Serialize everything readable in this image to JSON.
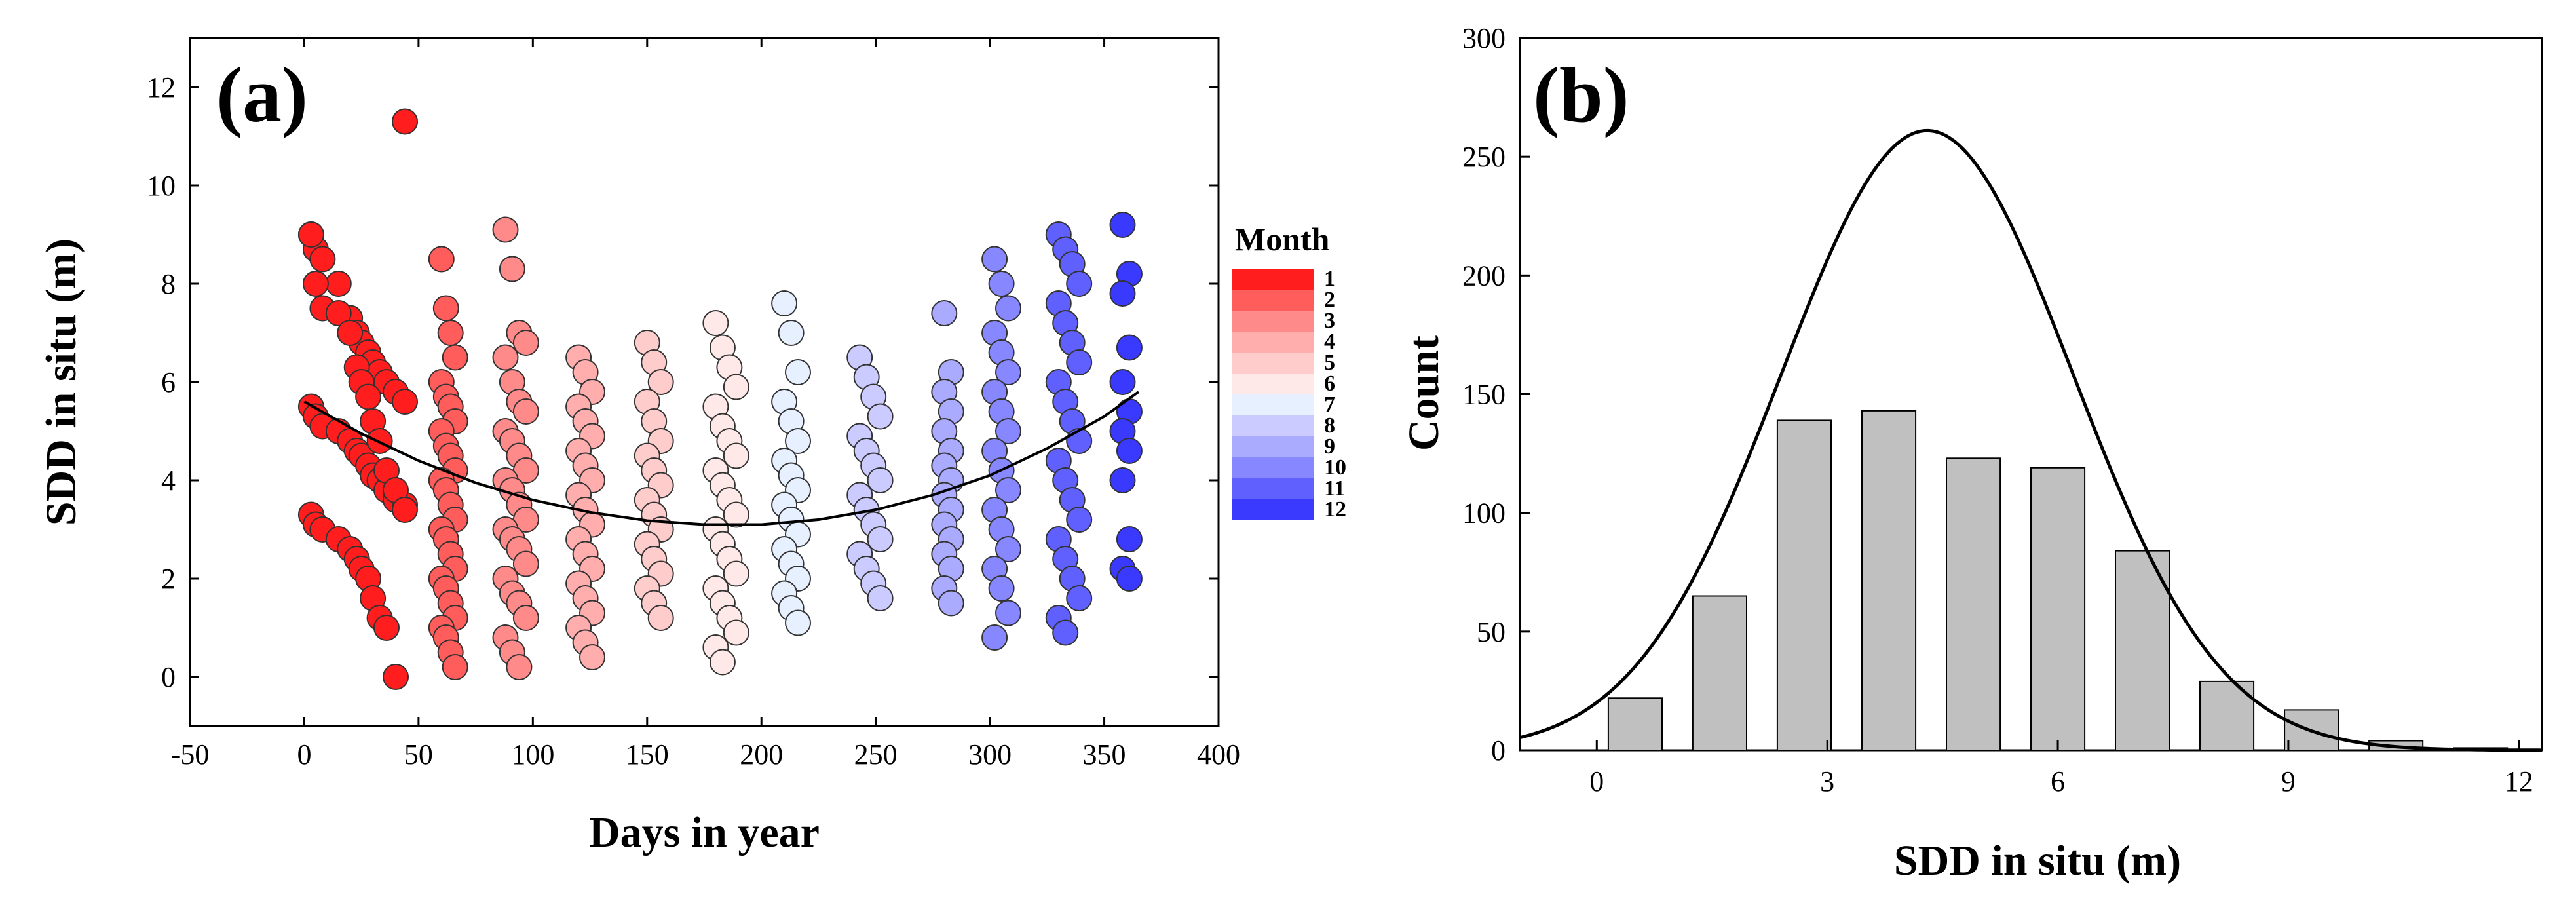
{
  "chart_data": [
    {
      "id": "a",
      "type": "scatter",
      "panel_label": "(a)",
      "xlabel": "Days in year",
      "ylabel": "SDD in situ  (m)",
      "xlim": [
        -50,
        400
      ],
      "ylim": [
        -1,
        13
      ],
      "xticks": [
        -50,
        0,
        50,
        100,
        150,
        200,
        250,
        300,
        350,
        400
      ],
      "yticks": [
        0,
        2,
        4,
        6,
        8,
        10,
        12
      ],
      "legend": {
        "title": "Month",
        "labels": [
          "1",
          "2",
          "3",
          "4",
          "5",
          "6",
          "7",
          "8",
          "9",
          "10",
          "11",
          "12"
        ],
        "colors": [
          "#ff1d1d",
          "#ff5c5c",
          "#ff8a8a",
          "#ffadad",
          "#ffcccc",
          "#ffe8e8",
          "#e6f0ff",
          "#cbcbff",
          "#aaaaff",
          "#8787ff",
          "#6060ff",
          "#3a3aff"
        ]
      },
      "month_days": [
        [
          3,
          5,
          8,
          15,
          20,
          23,
          25,
          28,
          30,
          33,
          36,
          40,
          44
        ],
        [
          60,
          62,
          64,
          66
        ],
        [
          88,
          91,
          94,
          97
        ],
        [
          120,
          123,
          126
        ],
        [
          150,
          153,
          156
        ],
        [
          180,
          183,
          186,
          189
        ],
        [
          210,
          213,
          216
        ],
        [
          243,
          246,
          249,
          252
        ],
        [
          280,
          283
        ],
        [
          302,
          305,
          308
        ],
        [
          330,
          333,
          336,
          339
        ],
        [
          358,
          361
        ]
      ],
      "month_sdd": [
        [
          9.0,
          8.7,
          8.5,
          8.0,
          7.3,
          7.0,
          6.8,
          6.6,
          6.4,
          6.2,
          6.0,
          5.8,
          5.6,
          5.5,
          5.3,
          5.1,
          5.0,
          4.8,
          4.6,
          4.5,
          4.3,
          4.1,
          4.0,
          3.8,
          3.6,
          3.5,
          3.3,
          3.1,
          3.0,
          2.8,
          2.6,
          2.4,
          2.2,
          2.0,
          1.6,
          1.2,
          1.0,
          0.0,
          11.3,
          9.0,
          8.0,
          7.5,
          7.4,
          7.0,
          6.3,
          6.0,
          5.7,
          5.2,
          4.8,
          4.2,
          3.8,
          3.4
        ],
        [
          8.5,
          7.5,
          7.0,
          6.5,
          6.0,
          5.7,
          5.5,
          5.2,
          5.0,
          4.7,
          4.5,
          4.2,
          4.0,
          3.8,
          3.5,
          3.2,
          3.0,
          2.8,
          2.5,
          2.2,
          2.0,
          1.8,
          1.5,
          1.2,
          1.0,
          0.8,
          0.5,
          0.2
        ],
        [
          9.1,
          8.3,
          7.0,
          6.8,
          6.5,
          6.0,
          5.6,
          5.4,
          5.0,
          4.8,
          4.5,
          4.2,
          4.0,
          3.8,
          3.5,
          3.2,
          3.0,
          2.8,
          2.6,
          2.3,
          2.0,
          1.7,
          1.5,
          1.2,
          0.8,
          0.5,
          0.2
        ],
        [
          6.5,
          6.2,
          5.8,
          5.5,
          5.2,
          4.9,
          4.6,
          4.3,
          4.0,
          3.7,
          3.4,
          3.1,
          2.8,
          2.5,
          2.2,
          1.9,
          1.6,
          1.3,
          1.0,
          0.7,
          0.4
        ],
        [
          6.8,
          6.4,
          6.0,
          5.6,
          5.2,
          4.8,
          4.5,
          4.2,
          3.9,
          3.6,
          3.3,
          3.0,
          2.7,
          2.4,
          2.1,
          1.8,
          1.5,
          1.2
        ],
        [
          7.2,
          6.7,
          6.3,
          5.9,
          5.5,
          5.1,
          4.8,
          4.5,
          4.2,
          3.9,
          3.6,
          3.3,
          3.0,
          2.7,
          2.4,
          2.1,
          1.8,
          1.5,
          1.2,
          0.9,
          0.6,
          0.3
        ],
        [
          7.6,
          7.0,
          6.2,
          5.6,
          5.2,
          4.8,
          4.4,
          4.1,
          3.8,
          3.5,
          3.2,
          2.9,
          2.6,
          2.3,
          2.0,
          1.7,
          1.4,
          1.1
        ],
        [
          6.5,
          6.1,
          5.7,
          5.3,
          4.9,
          4.6,
          4.3,
          4.0,
          3.7,
          3.4,
          3.1,
          2.8,
          2.5,
          2.2,
          1.9,
          1.6
        ],
        [
          7.4,
          6.2,
          5.8,
          5.4,
          5.0,
          4.6,
          4.3,
          4.0,
          3.7,
          3.4,
          3.1,
          2.8,
          2.5,
          2.2,
          1.8,
          1.5
        ],
        [
          8.5,
          8.0,
          7.5,
          7.0,
          6.6,
          6.2,
          5.8,
          5.4,
          5.0,
          4.6,
          4.2,
          3.8,
          3.4,
          3.0,
          2.6,
          2.2,
          1.8,
          1.3,
          0.8
        ],
        [
          9.0,
          8.7,
          8.4,
          8.0,
          7.6,
          7.2,
          6.8,
          6.4,
          6.0,
          5.6,
          5.2,
          4.8,
          4.4,
          4.0,
          3.6,
          3.2,
          2.8,
          2.4,
          2.0,
          1.6,
          1.2,
          0.9
        ],
        [
          9.2,
          8.2,
          7.8,
          6.7,
          6.0,
          5.4,
          5.0,
          4.6,
          4.0,
          2.8,
          2.2,
          2.0
        ]
      ],
      "fit_curve": {
        "x": [
          0,
          25,
          50,
          75,
          100,
          125,
          150,
          175,
          200,
          225,
          250,
          275,
          300,
          325,
          350,
          365
        ],
        "y": [
          5.6,
          4.95,
          4.4,
          3.95,
          3.6,
          3.35,
          3.18,
          3.1,
          3.1,
          3.2,
          3.4,
          3.7,
          4.1,
          4.65,
          5.3,
          5.8
        ]
      }
    },
    {
      "id": "b",
      "type": "bar",
      "panel_label": "(b)",
      "xlabel": "SDD in situ  (m)",
      "ylabel": "Count",
      "xlim": [
        -1,
        12.3
      ],
      "ylim": [
        0,
        300
      ],
      "xticks": [
        0,
        3,
        6,
        9,
        12
      ],
      "yticks": [
        0,
        50,
        100,
        150,
        200,
        250,
        300
      ],
      "bin_centers": [
        0.5,
        1.6,
        2.7,
        3.8,
        4.9,
        6.0,
        7.1,
        8.2,
        9.3,
        10.4,
        11.5
      ],
      "values": [
        22,
        65,
        139,
        143,
        123,
        119,
        84,
        29,
        17,
        4,
        1
      ],
      "bar_color": "#c0c0c0",
      "fit_curve": {
        "type": "normal",
        "mu": 4.3,
        "sigma": 1.9,
        "peak": 261
      }
    }
  ]
}
